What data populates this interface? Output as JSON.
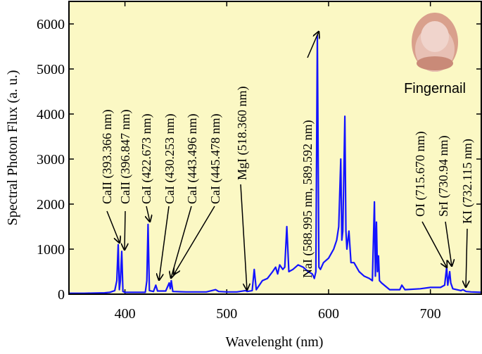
{
  "chart_data": {
    "type": "line",
    "xlabel": "Wavelenght (nm)",
    "ylabel": "Spectral Photon Flux (a. u.)",
    "x": [
      345,
      360,
      380,
      385,
      390,
      392,
      393.4,
      394.5,
      395.5,
      396.8,
      398,
      400,
      410,
      420,
      421.5,
      422.7,
      424,
      428,
      430.3,
      432,
      440,
      443.5,
      444.5,
      445.5,
      447,
      460,
      480,
      489,
      492,
      500,
      510,
      518.4,
      520,
      525,
      527,
      529,
      535,
      540,
      545,
      548,
      550,
      552,
      555,
      557,
      559,
      561,
      565,
      570,
      575,
      580,
      584,
      586,
      587.5,
      589,
      590.5,
      592,
      595,
      600,
      605,
      608,
      610,
      612,
      613,
      614,
      616,
      617,
      618,
      620,
      622,
      625,
      630,
      635,
      640,
      643,
      645,
      646,
      647,
      648,
      649,
      650,
      652,
      660,
      670,
      672,
      675,
      690,
      700,
      710,
      714,
      716,
      717,
      719,
      720,
      722,
      730,
      732,
      735,
      740,
      750
    ],
    "series": [
      {
        "color": "#1414ff",
        "values": [
          20,
          20,
          30,
          40,
          80,
          300,
          1100,
          100,
          300,
          950,
          60,
          40,
          40,
          40,
          300,
          1550,
          80,
          60,
          200,
          70,
          70,
          250,
          120,
          300,
          60,
          50,
          50,
          100,
          60,
          50,
          50,
          80,
          60,
          80,
          550,
          100,
          300,
          350,
          500,
          600,
          450,
          650,
          550,
          600,
          1500,
          500,
          550,
          650,
          600,
          500,
          450,
          350,
          500,
          5750,
          600,
          550,
          700,
          800,
          1000,
          1200,
          1500,
          3000,
          1200,
          1400,
          3950,
          1400,
          1000,
          1400,
          700,
          700,
          500,
          400,
          350,
          300,
          2050,
          400,
          1600,
          500,
          850,
          300,
          250,
          100,
          100,
          200,
          100,
          120,
          150,
          150,
          200,
          600,
          200,
          500,
          250,
          120,
          80,
          100,
          60,
          50,
          40
        ]
      }
    ],
    "xlim": [
      345,
      750
    ],
    "ylim": [
      0,
      6500
    ],
    "xticks": [
      400,
      500,
      600,
      700
    ],
    "yticks": [
      0,
      1000,
      2000,
      3000,
      4000,
      5000,
      6000
    ],
    "annotations": [
      "CaII (393.366 nm)",
      "CaII (396.847 nm)",
      "CaI (422.673 nm)",
      "CaI (430.253 nm)",
      "CaI (443.496 nm)",
      "CaI (445.478 nm)",
      "MgI (518.360 nm)",
      "NaI (588.995 nm, 589.592 nm)",
      "OI (715.670 nm)",
      "SrI (730.94 nm)",
      "KI (732.115 nm)"
    ],
    "inset_label": "Fingernail"
  }
}
